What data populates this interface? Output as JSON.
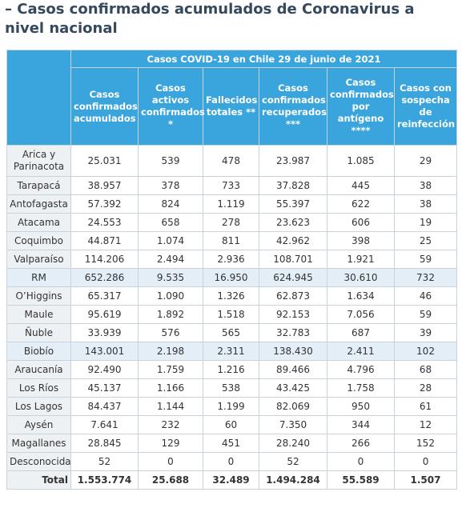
{
  "header": {
    "title": "– Casos confirmados acumulados de Coronavirus a nivel nacional"
  },
  "table": {
    "caption": "Casos COVID-19 en Chile 29 de junio de 2021",
    "columns": [
      "Casos confirmados acumulados",
      "Casos activos confirmados *",
      "Fallecidos totales **",
      "Casos confirmados recuperados ***",
      "Casos confirmados por antígeno ****",
      "Casos con sospecha de reinfección"
    ],
    "rows": [
      [
        "Arica y Parinacota",
        "25.031",
        "539",
        "478",
        "23.987",
        "1.085",
        "29"
      ],
      [
        "Tarapacá",
        "38.957",
        "378",
        "733",
        "37.828",
        "445",
        "38"
      ],
      [
        "Antofagasta",
        "57.392",
        "824",
        "1.119",
        "55.397",
        "622",
        "38"
      ],
      [
        "Atacama",
        "24.553",
        "658",
        "278",
        "23.623",
        "606",
        "19"
      ],
      [
        "Coquimbo",
        "44.871",
        "1.074",
        "811",
        "42.962",
        "398",
        "25"
      ],
      [
        "Valparaíso",
        "114.206",
        "2.494",
        "2.936",
        "108.701",
        "1.921",
        "59"
      ],
      [
        "RM",
        "652.286",
        "9.535",
        "16.950",
        "624.945",
        "30.610",
        "732"
      ],
      [
        "O’Higgins",
        "65.317",
        "1.090",
        "1.326",
        "62.873",
        "1.634",
        "46"
      ],
      [
        "Maule",
        "95.619",
        "1.892",
        "1.518",
        "92.153",
        "7.056",
        "59"
      ],
      [
        "Ñuble",
        "33.939",
        "576",
        "565",
        "32.783",
        "687",
        "39"
      ],
      [
        "Biobío",
        "143.001",
        "2.198",
        "2.311",
        "138.430",
        "2.411",
        "102"
      ],
      [
        "Araucanía",
        "92.490",
        "1.759",
        "1.216",
        "89.466",
        "4.796",
        "68"
      ],
      [
        "Los Ríos",
        "45.137",
        "1.166",
        "538",
        "43.425",
        "1.758",
        "28"
      ],
      [
        "Los Lagos",
        "84.437",
        "1.144",
        "1.199",
        "82.069",
        "950",
        "61"
      ],
      [
        "Aysén",
        "7.641",
        "232",
        "60",
        "7.350",
        "344",
        "12"
      ],
      [
        "Magallanes",
        "28.845",
        "129",
        "451",
        "28.240",
        "266",
        "152"
      ],
      [
        "Desconocida",
        "52",
        "0",
        "0",
        "52",
        "0",
        "0"
      ],
      [
        "Total",
        "1.553.774",
        "25.688",
        "32.489",
        "1.494.284",
        "55.589",
        "1.507"
      ]
    ]
  }
}
